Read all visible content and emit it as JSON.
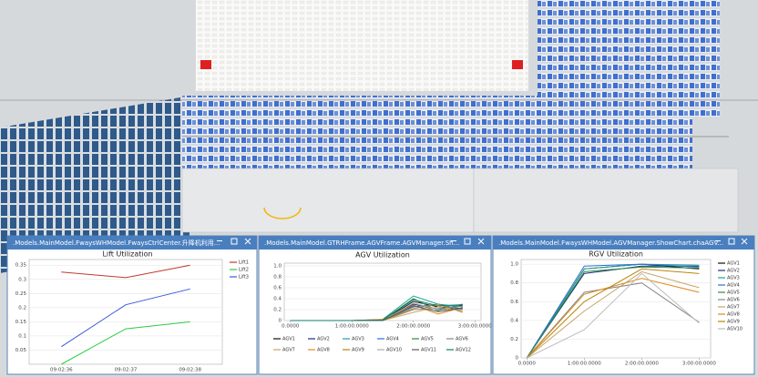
{
  "windows": [
    {
      "title": ".Models.MainModel.FwaysWHModel.FwaysCtrlCenter.升降机利用..."
    },
    {
      "title": ".Models.MainModel.GTRHFrame.AGVFrame.AGVManager.Sh..."
    },
    {
      "title": ".Models.MainModel.FwaysWHModel.AGVManager.ShowChart.chaAGV..."
    }
  ],
  "chart_data": [
    {
      "type": "line",
      "title": "Lift Utilization",
      "categories": [
        "09:02:36",
        "09:02:37",
        "09:02:38"
      ],
      "series": [
        {
          "name": "Lift1",
          "color": "#c0392b",
          "values": [
            0.326,
            0.306,
            0.35
          ]
        },
        {
          "name": "Lift2",
          "color": "#2ecc40",
          "values": [
            0,
            0.125,
            0.15
          ]
        },
        {
          "name": "Lift3",
          "color": "#3b5bdb",
          "values": [
            0.062,
            0.21,
            0.266
          ]
        }
      ],
      "ylim": [
        0,
        0.37
      ],
      "yticks": [
        0.05,
        0.1,
        0.15,
        0.2,
        0.25,
        0.3,
        0.35
      ],
      "grid": true,
      "legend": "right"
    },
    {
      "type": "line",
      "title": "AGV Utilization",
      "x": [
        0,
        1,
        1.5,
        2,
        2.4,
        2.8
      ],
      "series": [
        {
          "name": "AGV1",
          "color": "#111111",
          "values": [
            0,
            0,
            0,
            0.35,
            0.25,
            0.22
          ]
        },
        {
          "name": "AGV2",
          "color": "#1f2f7a",
          "values": [
            0,
            0,
            0,
            0.3,
            0.2,
            0.28
          ]
        },
        {
          "name": "AGV3",
          "color": "#1aa39a",
          "values": [
            0,
            0,
            0.02,
            0.45,
            0.3,
            0.25
          ]
        },
        {
          "name": "AGV4",
          "color": "#2f6fd6",
          "values": [
            0,
            0,
            0,
            0.25,
            0.3,
            0.2
          ]
        },
        {
          "name": "AGV5",
          "color": "#2e8b3e",
          "values": [
            0,
            0,
            0.01,
            0.4,
            0.18,
            0.3
          ]
        },
        {
          "name": "AGV6",
          "color": "#888888",
          "values": [
            0,
            0,
            0,
            0.2,
            0.22,
            0.26
          ]
        },
        {
          "name": "AGV7",
          "color": "#c9a46a",
          "values": [
            0,
            0,
            0,
            0.15,
            0.25,
            0.18
          ]
        },
        {
          "name": "AGV8",
          "color": "#e08a1e",
          "values": [
            0,
            0,
            0.02,
            0.28,
            0.12,
            0.24
          ]
        },
        {
          "name": "AGV9",
          "color": "#b8860b",
          "values": [
            0,
            0,
            0,
            0.22,
            0.3,
            0.15
          ]
        },
        {
          "name": "AGV10",
          "color": "#aaaaaa",
          "values": [
            0,
            0,
            0,
            0.32,
            0.2,
            0.2
          ]
        },
        {
          "name": "AGV11",
          "color": "#5a5a5a",
          "values": [
            0,
            0,
            0,
            0.27,
            0.16,
            0.23
          ]
        },
        {
          "name": "AGV12",
          "color": "#0f7d6e",
          "values": [
            0,
            0,
            0.01,
            0.38,
            0.27,
            0.29
          ]
        }
      ],
      "xlim": [
        -0.1,
        3.1
      ],
      "xticks": [
        {
          "value": 0,
          "label": "0.0000"
        },
        {
          "value": 1,
          "label": "1:00:00.0000"
        },
        {
          "value": 2,
          "label": "2:00:00.0000"
        },
        {
          "value": 3,
          "label": "3:00:00.0000"
        }
      ],
      "ylim": [
        0,
        1.05
      ],
      "yticks": [
        0,
        0.2,
        0.4,
        0.6,
        0.8,
        {
          "value": 1,
          "label": "1.0"
        }
      ],
      "grid": true,
      "legend": "bottom"
    },
    {
      "type": "line",
      "title": "RGV Utilization",
      "x": [
        0,
        1,
        2,
        3
      ],
      "series": [
        {
          "name": "AGV1",
          "color": "#111111",
          "values": [
            0,
            0.95,
            1.0,
            0.95
          ]
        },
        {
          "name": "AGV2",
          "color": "#1f2f7a",
          "values": [
            0,
            0.9,
            0.98,
            0.98
          ]
        },
        {
          "name": "AGV3",
          "color": "#1aa39a",
          "values": [
            0,
            0.95,
            1.0,
            0.99
          ]
        },
        {
          "name": "AGV4",
          "color": "#2f6fd6",
          "values": [
            0,
            0.98,
            1.0,
            0.97
          ]
        },
        {
          "name": "AGV5",
          "color": "#2e8b3e",
          "values": [
            0,
            0.92,
            0.97,
            0.96
          ]
        },
        {
          "name": "AGV6",
          "color": "#888888",
          "values": [
            0,
            0.7,
            0.8,
            0.38
          ]
        },
        {
          "name": "AGV7",
          "color": "#c9a46a",
          "values": [
            0,
            0.5,
            0.92,
            0.75
          ]
        },
        {
          "name": "AGV8",
          "color": "#e08a1e",
          "values": [
            0,
            0.68,
            0.85,
            0.7
          ]
        },
        {
          "name": "AGV9",
          "color": "#b8860b",
          "values": [
            0,
            0.6,
            0.95,
            0.9
          ]
        },
        {
          "name": "AGV10",
          "color": "#bbbbbb",
          "values": [
            0,
            0.3,
            0.9,
            0.37
          ]
        }
      ],
      "xlim": [
        -0.1,
        3.2
      ],
      "xticks": [
        {
          "value": 0,
          "label": "0.0000"
        },
        {
          "value": 1,
          "label": "1:00:00.0000"
        },
        {
          "value": 2,
          "label": "2:00:00.0000"
        },
        {
          "value": 3,
          "label": "3:00:00.0000"
        }
      ],
      "ylim": [
        0,
        1.05
      ],
      "yticks": [
        0,
        0.2,
        0.4,
        0.6,
        0.8,
        {
          "value": 1,
          "label": "1.0"
        }
      ],
      "grid": true,
      "legend": "right"
    }
  ]
}
